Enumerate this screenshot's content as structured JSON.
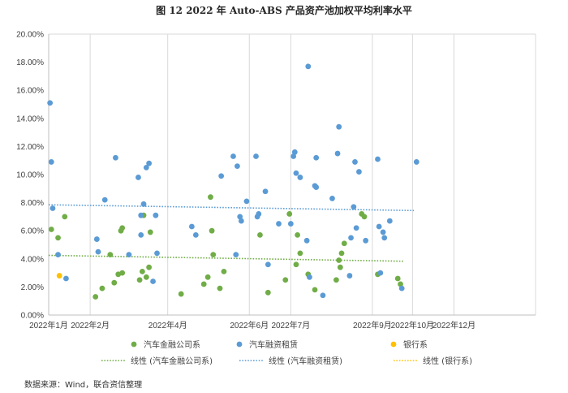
{
  "title": "图 12   2022 年 Auto-ABS 产品资产池加权平均利率水平",
  "source": "数据来源：Wind，联合资信整理",
  "chart_data": {
    "type": "scatter",
    "title": "图 12   2022 年 Auto-ABS 产品资产池加权平均利率水平",
    "xlabel": "",
    "ylabel": "",
    "x_type": "date",
    "xlim": [
      "2022-01-01",
      "2022-12-31"
    ],
    "ylim": [
      0,
      0.2
    ],
    "y_ticks": [
      0,
      0.02,
      0.04,
      0.06,
      0.08,
      0.1,
      0.12,
      0.14,
      0.16,
      0.18,
      0.2
    ],
    "y_tick_labels": [
      "0.00%",
      "2.00%",
      "4.00%",
      "6.00%",
      "8.00%",
      "10.00%",
      "12.00%",
      "14.00%",
      "16.00%",
      "18.00%",
      "20.00%"
    ],
    "x_ticks": [
      "2022-01-01",
      "2022-02-01",
      "2022-03-01",
      "2022-04-01",
      "2022-05-01",
      "2022-06-01",
      "2022-07-01",
      "2022-08-01",
      "2022-09-01",
      "2022-10-01",
      "2022-11-01",
      "2022-12-01"
    ],
    "x_tick_labels": [
      "2022年1月",
      "",
      "2022年2月",
      "",
      "2022年4月",
      "",
      "2022年6月",
      "",
      "2022年7月",
      "",
      "2022年9月",
      "",
      "2022年10月",
      "",
      "2022年12月"
    ],
    "x_tick_label_dates": [
      "2022-01-01",
      "2022-02-01",
      "2022-03-01",
      "2022-04-01",
      "2022-05-01",
      "2022-06-01",
      "2022-07-01",
      "2022-08-01",
      "2022-09-01",
      "2022-10-01",
      "2022-11-01",
      "2022-12-01",
      "2022-12-16",
      "2022-12-23",
      "2022-12-31"
    ],
    "x_tick_labels_shown": [
      {
        "label": "2022年1月",
        "date": "2022-01-01"
      },
      {
        "label": "2022年2月",
        "date": "2022-02-01"
      },
      {
        "label": "2022年4月",
        "date": "2022-03-31"
      },
      {
        "label": "2022年6月",
        "date": "2022-05-31"
      },
      {
        "label": "2022年7月",
        "date": "2022-07-01"
      },
      {
        "label": "2022年9月",
        "date": "2022-08-31"
      },
      {
        "label": "2022年10月",
        "date": "2022-09-30"
      },
      {
        "label": "2022年12月",
        "date": "2022-10-31"
      }
    ],
    "grid": "vertical",
    "legend_position": "bottom",
    "series": [
      {
        "name": "汽车金融公司系",
        "color": "#70ad47",
        "points": [
          [
            "2022-01-03",
            0.061
          ],
          [
            "2022-01-08",
            0.055
          ],
          [
            "2022-01-13",
            0.07
          ],
          [
            "2022-02-05",
            0.013
          ],
          [
            "2022-02-10",
            0.019
          ],
          [
            "2022-02-16",
            0.043
          ],
          [
            "2022-02-19",
            0.023
          ],
          [
            "2022-02-22",
            0.029
          ],
          [
            "2022-02-24",
            0.06
          ],
          [
            "2022-02-25",
            0.062
          ],
          [
            "2022-02-25",
            0.03
          ],
          [
            "2022-03-10",
            0.025
          ],
          [
            "2022-03-12",
            0.031
          ],
          [
            "2022-03-13",
            0.071
          ],
          [
            "2022-03-15",
            0.027
          ],
          [
            "2022-03-17",
            0.034
          ],
          [
            "2022-03-18",
            0.059
          ],
          [
            "2022-04-10",
            0.015
          ],
          [
            "2022-04-27",
            0.022
          ],
          [
            "2022-04-30",
            0.027
          ],
          [
            "2022-05-02",
            0.084
          ],
          [
            "2022-05-03",
            0.06
          ],
          [
            "2022-05-04",
            0.043
          ],
          [
            "2022-05-09",
            0.019
          ],
          [
            "2022-05-12",
            0.031
          ],
          [
            "2022-06-08",
            0.057
          ],
          [
            "2022-06-14",
            0.016
          ],
          [
            "2022-06-27",
            0.025
          ],
          [
            "2022-06-30",
            0.072
          ],
          [
            "2022-07-05",
            0.036
          ],
          [
            "2022-07-06",
            0.057
          ],
          [
            "2022-07-08",
            0.044
          ],
          [
            "2022-07-14",
            0.029
          ],
          [
            "2022-07-19",
            0.018
          ],
          [
            "2022-08-04",
            0.025
          ],
          [
            "2022-08-06",
            0.039
          ],
          [
            "2022-08-07",
            0.034
          ],
          [
            "2022-08-08",
            0.044
          ],
          [
            "2022-08-10",
            0.051
          ],
          [
            "2022-08-23",
            0.072
          ],
          [
            "2022-08-25",
            0.07
          ],
          [
            "2022-09-04",
            0.029
          ],
          [
            "2022-09-19",
            0.026
          ],
          [
            "2022-09-21",
            0.022
          ]
        ]
      },
      {
        "name": "汽车融资租赁",
        "color": "#5b9bd5",
        "points": [
          [
            "2022-01-02",
            0.151
          ],
          [
            "2022-01-03",
            0.109
          ],
          [
            "2022-01-04",
            0.076
          ],
          [
            "2022-01-08",
            0.043
          ],
          [
            "2022-01-14",
            0.026
          ],
          [
            "2022-02-06",
            0.054
          ],
          [
            "2022-02-07",
            0.045
          ],
          [
            "2022-02-12",
            0.082
          ],
          [
            "2022-02-20",
            0.112
          ],
          [
            "2022-03-02",
            0.043
          ],
          [
            "2022-03-09",
            0.098
          ],
          [
            "2022-03-11",
            0.057
          ],
          [
            "2022-03-11",
            0.071
          ],
          [
            "2022-03-13",
            0.079
          ],
          [
            "2022-03-15",
            0.105
          ],
          [
            "2022-03-17",
            0.108
          ],
          [
            "2022-03-20",
            0.024
          ],
          [
            "2022-03-22",
            0.071
          ],
          [
            "2022-03-23",
            0.044
          ],
          [
            "2022-04-18",
            0.063
          ],
          [
            "2022-04-21",
            0.057
          ],
          [
            "2022-05-10",
            0.099
          ],
          [
            "2022-05-19",
            0.113
          ],
          [
            "2022-05-21",
            0.043
          ],
          [
            "2022-05-22",
            0.106
          ],
          [
            "2022-05-24",
            0.07
          ],
          [
            "2022-05-25",
            0.067
          ],
          [
            "2022-05-29",
            0.081
          ],
          [
            "2022-06-05",
            0.113
          ],
          [
            "2022-06-06",
            0.07
          ],
          [
            "2022-06-07",
            0.072
          ],
          [
            "2022-06-12",
            0.088
          ],
          [
            "2022-06-14",
            0.036
          ],
          [
            "2022-06-22",
            0.065
          ],
          [
            "2022-07-01",
            0.065
          ],
          [
            "2022-07-03",
            0.113
          ],
          [
            "2022-07-04",
            0.116
          ],
          [
            "2022-07-05",
            0.101
          ],
          [
            "2022-07-08",
            0.098
          ],
          [
            "2022-07-13",
            0.053
          ],
          [
            "2022-07-14",
            0.177
          ],
          [
            "2022-07-15",
            0.027
          ],
          [
            "2022-07-19",
            0.092
          ],
          [
            "2022-07-20",
            0.112
          ],
          [
            "2022-07-20",
            0.091
          ],
          [
            "2022-07-25",
            0.014
          ],
          [
            "2022-08-01",
            0.083
          ],
          [
            "2022-08-05",
            0.115
          ],
          [
            "2022-08-06",
            0.134
          ],
          [
            "2022-08-14",
            0.028
          ],
          [
            "2022-08-15",
            0.055
          ],
          [
            "2022-08-17",
            0.077
          ],
          [
            "2022-08-18",
            0.109
          ],
          [
            "2022-08-19",
            0.062
          ],
          [
            "2022-08-21",
            0.102
          ],
          [
            "2022-08-26",
            0.053
          ],
          [
            "2022-09-04",
            0.111
          ],
          [
            "2022-09-05",
            0.063
          ],
          [
            "2022-09-06",
            0.03
          ],
          [
            "2022-09-08",
            0.059
          ],
          [
            "2022-09-09",
            0.055
          ],
          [
            "2022-09-13",
            0.067
          ],
          [
            "2022-09-22",
            0.019
          ],
          [
            "2022-10-03",
            0.109
          ]
        ]
      },
      {
        "name": "银行系",
        "color": "#ffc000",
        "points": [
          [
            "2022-01-09",
            0.028
          ]
        ]
      }
    ],
    "trendlines": [
      {
        "name": "线性 (汽车金融公司系)",
        "color": "#70ad47",
        "x": [
          "2022-01-01",
          "2022-09-24"
        ],
        "y": [
          0.0425,
          0.0383
        ]
      },
      {
        "name": "线性 (汽车融资租赁)",
        "color": "#5b9bd5",
        "x": [
          "2022-01-01",
          "2022-10-01"
        ],
        "y": [
          0.0785,
          0.0744
        ]
      },
      {
        "name": "线性 (银行系)",
        "color": "#ffc000",
        "x": [],
        "y": []
      }
    ]
  }
}
